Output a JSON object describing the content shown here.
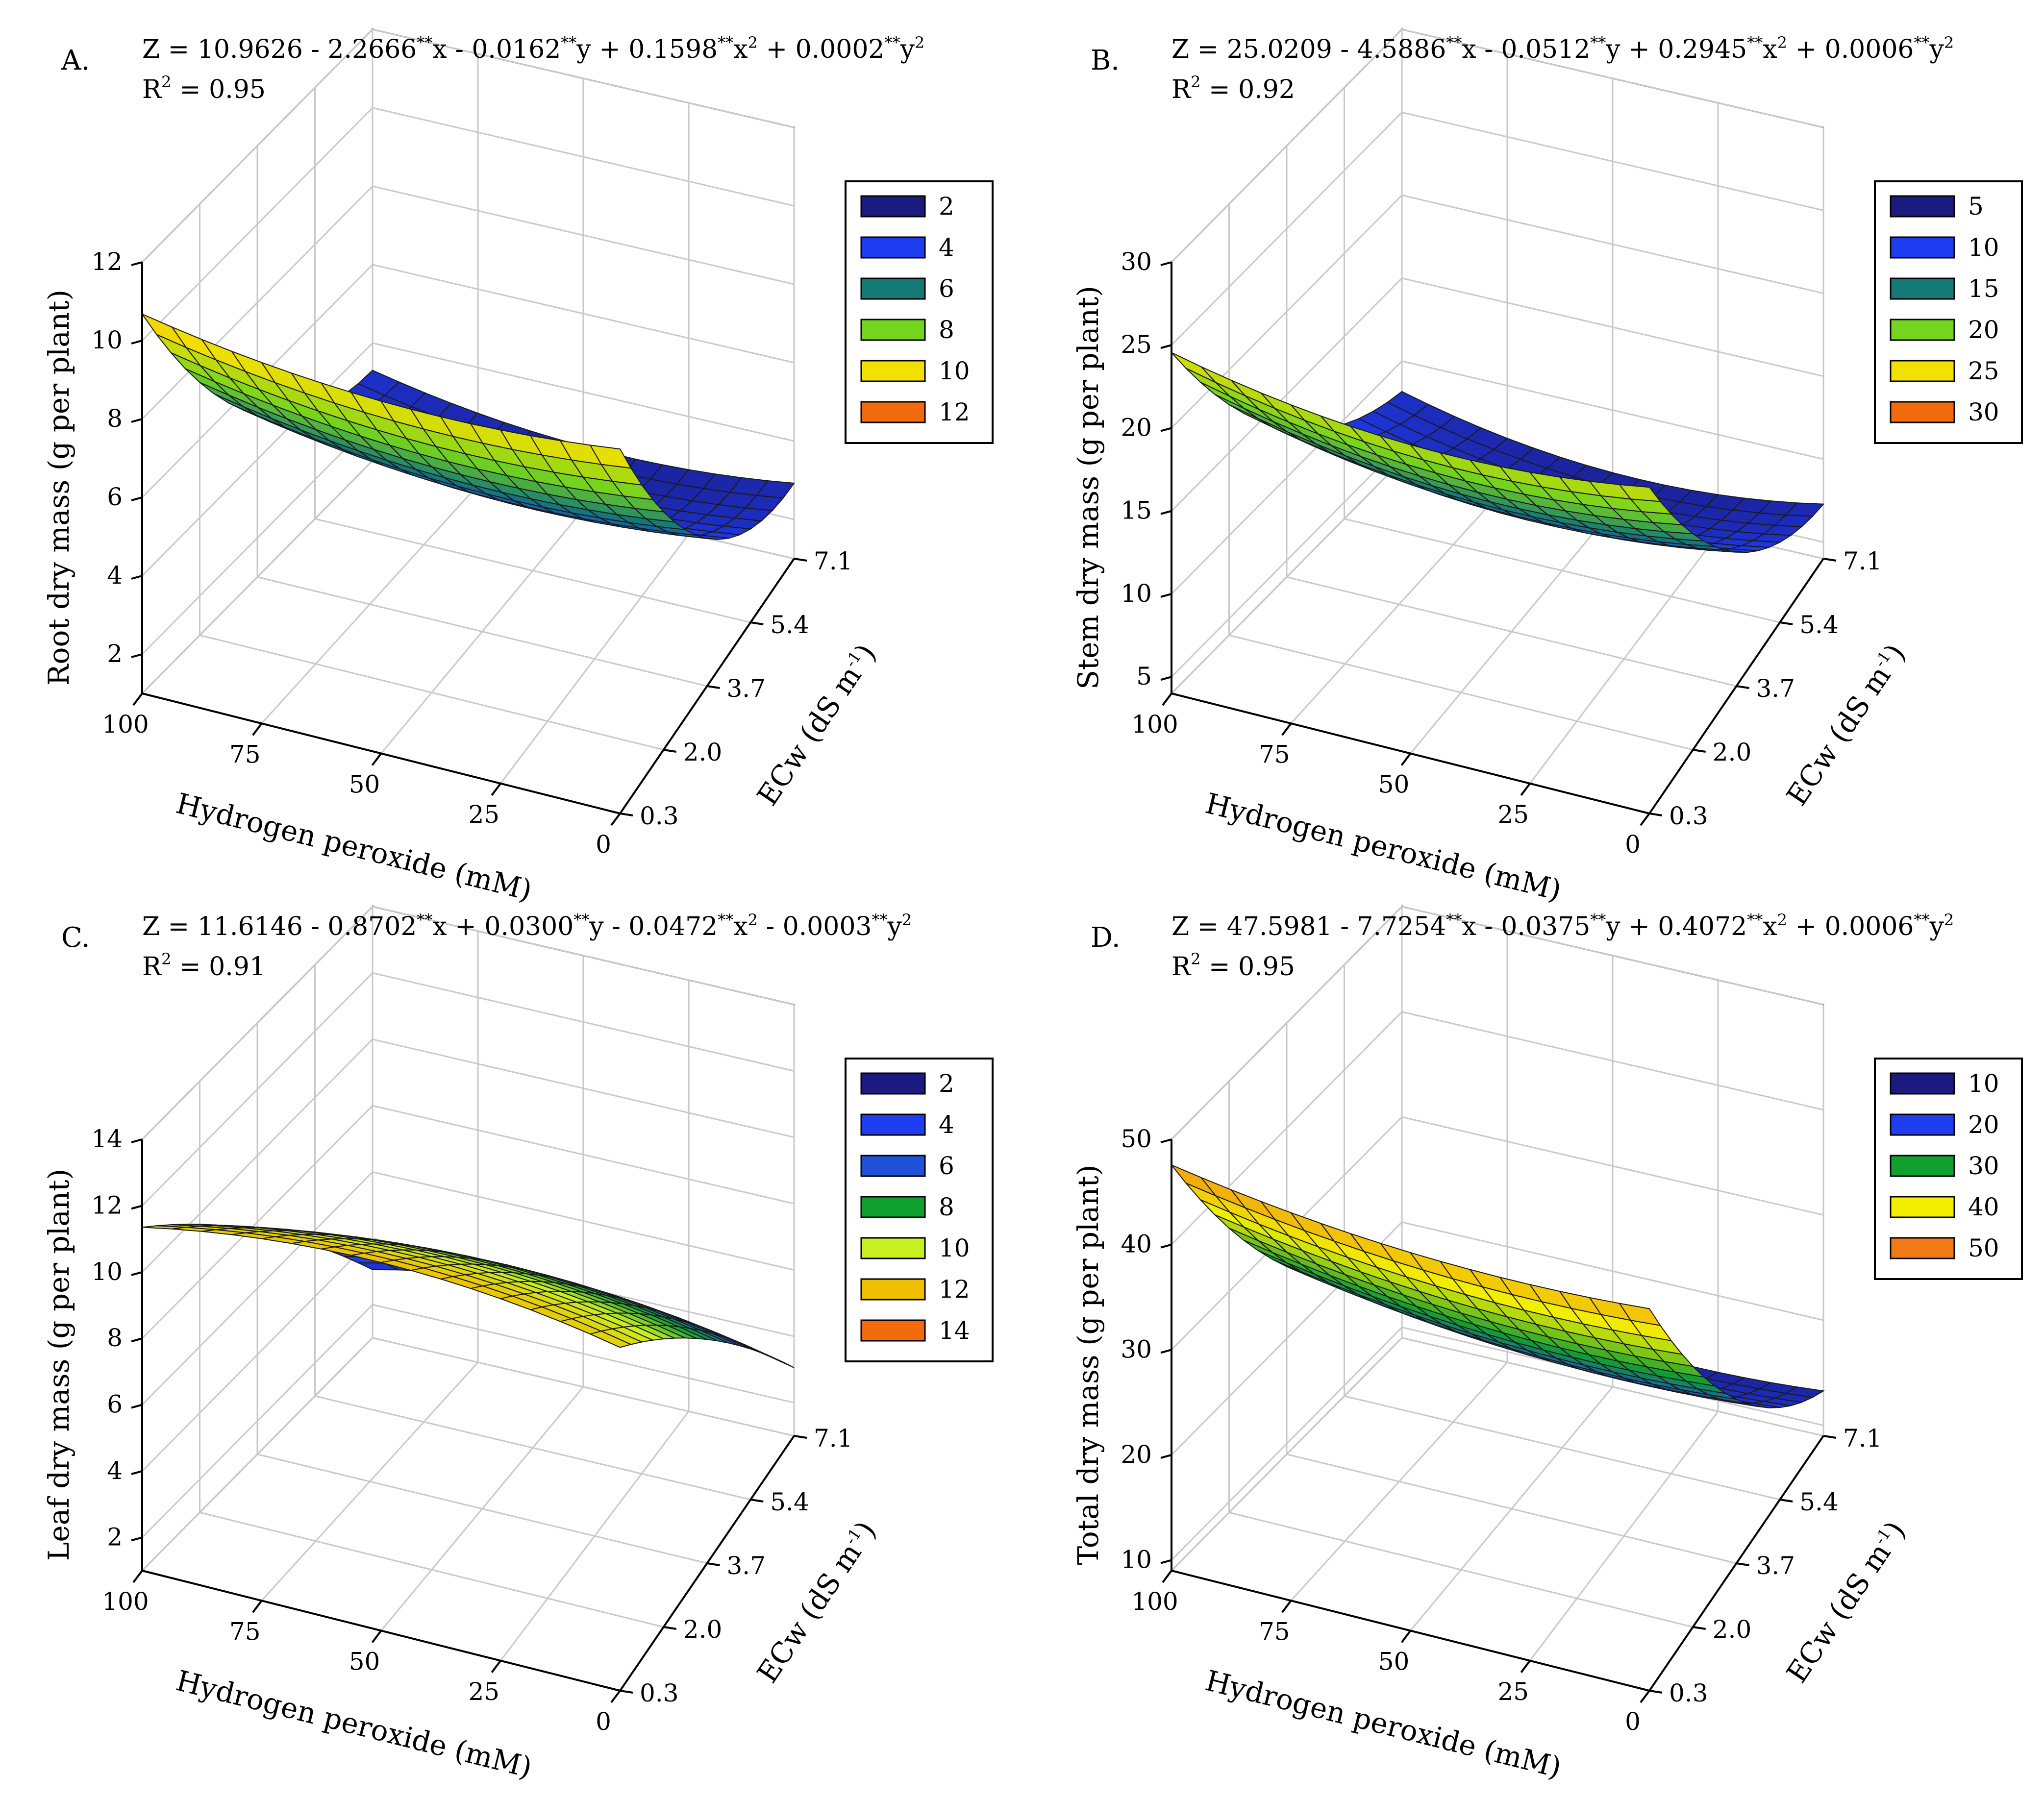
{
  "figure": {
    "panels": [
      {
        "letter": "A.",
        "equation": {
          "lead": "Z = 10.9626 - 2.2666",
          "c1": "x - 0.0162",
          "c2": "y + 0.1598",
          "c3": "x",
          "c4": " + 0.0002",
          "c5": "y",
          "stars": "**",
          "sq": "2"
        },
        "r2": {
          "prefix": "R",
          "exp": "2",
          "value": " = 0.95"
        },
        "zlabel": "Root dry mass (g per plant)",
        "xlabel": "Hydrogen peroxide (mM)",
        "ylabel": "ECw (dS m",
        "ylabel_exp": "-1",
        "ylabel_close": ")"
      },
      {
        "letter": "B.",
        "equation": {
          "lead": "Z = 25.0209 - 4.5886",
          "c1": "x - 0.0512",
          "c2": "y + 0.2945",
          "c3": "x",
          "c4": " + 0.0006",
          "c5": "y",
          "stars": "**",
          "sq": "2"
        },
        "r2": {
          "prefix": "R",
          "exp": "2",
          "value": " = 0.92"
        },
        "zlabel": "Stem dry mass (g per plant)",
        "xlabel": "Hydrogen peroxide (mM)",
        "ylabel": "ECw (dS m",
        "ylabel_exp": "-1",
        "ylabel_close": ")"
      },
      {
        "letter": "C.",
        "equation": {
          "lead": "Z = 11.6146 - 0.8702",
          "c1": "x + 0.0300",
          "c2": "y - 0.0472",
          "c3": "x",
          "c4": " - 0.0003",
          "c5": "y",
          "stars": "**",
          "sq": "2"
        },
        "r2": {
          "prefix": "R",
          "exp": "2",
          "value": " = 0.91"
        },
        "zlabel": "Leaf dry mass (g per plant)",
        "xlabel": "Hydrogen peroxide (mM)",
        "ylabel": "ECw (dS m",
        "ylabel_exp": "-1",
        "ylabel_close": ")"
      },
      {
        "letter": "D.",
        "equation": {
          "lead": "Z = 47.5981 - 7.7254",
          "c1": "x - 0.0375",
          "c2": "y + 0.4072",
          "c3": "x",
          "c4": " + 0.0006",
          "c5": "y",
          "stars": "**",
          "sq": "2"
        },
        "r2": {
          "prefix": "R",
          "exp": "2",
          "value": " = 0.95"
        },
        "zlabel": "Total dry mass (g per plant)",
        "xlabel": "Hydrogen peroxide (mM)",
        "ylabel": "ECw (dS m",
        "ylabel_exp": "-1",
        "ylabel_close": ")"
      }
    ]
  },
  "chart_data": [
    {
      "type": "surface",
      "id": "A",
      "title": "Root dry mass",
      "model": {
        "b0": 10.9626,
        "bx": -2.2666,
        "by": -0.0162,
        "bxx": 0.1598,
        "byy": 0.0002
      },
      "x_var": "ECw (dS m-1)",
      "y_var": "Hydrogen peroxide (mM)",
      "x_ticks": [
        "0.3",
        "2.0",
        "3.7",
        "5.4",
        "7.1"
      ],
      "y_ticks": [
        "0",
        "25",
        "50",
        "75",
        "100"
      ],
      "z_ticks": [
        "2",
        "4",
        "6",
        "8",
        "10",
        "12"
      ],
      "xlim": [
        0.3,
        7.1
      ],
      "ylim": [
        0,
        100
      ],
      "zlim": [
        1,
        12
      ],
      "legend": [
        "2",
        "4",
        "6",
        "8",
        "10",
        "12"
      ],
      "legend_colors": [
        "#1a1a80",
        "#1e3cf0",
        "#137a76",
        "#74d41e",
        "#f2e000",
        "#f26a0c"
      ]
    },
    {
      "type": "surface",
      "id": "B",
      "title": "Stem dry mass",
      "model": {
        "b0": 25.0209,
        "bx": -4.5886,
        "by": -0.0512,
        "bxx": 0.2945,
        "byy": 0.0006
      },
      "x_var": "ECw (dS m-1)",
      "y_var": "Hydrogen peroxide (mM)",
      "x_ticks": [
        "0.3",
        "2.0",
        "3.7",
        "5.4",
        "7.1"
      ],
      "y_ticks": [
        "0",
        "25",
        "50",
        "75",
        "100"
      ],
      "z_ticks": [
        "5",
        "10",
        "15",
        "20",
        "25",
        "30"
      ],
      "xlim": [
        0.3,
        7.1
      ],
      "ylim": [
        0,
        100
      ],
      "zlim": [
        4,
        30
      ],
      "legend": [
        "5",
        "10",
        "15",
        "20",
        "25",
        "30"
      ],
      "legend_colors": [
        "#1a1a80",
        "#1e3cf0",
        "#137a76",
        "#74d41e",
        "#f2e000",
        "#f26a0c"
      ]
    },
    {
      "type": "surface",
      "id": "C",
      "title": "Leaf dry mass",
      "model": {
        "b0": 11.6146,
        "bx": -0.8702,
        "by": 0.03,
        "bxx": -0.0472,
        "byy": -0.0003
      },
      "x_var": "ECw (dS m-1)",
      "y_var": "Hydrogen peroxide (mM)",
      "x_ticks": [
        "0.3",
        "2.0",
        "3.7",
        "5.4",
        "7.1"
      ],
      "y_ticks": [
        "0",
        "25",
        "50",
        "75",
        "100"
      ],
      "z_ticks": [
        "2",
        "4",
        "6",
        "8",
        "10",
        "12",
        "14"
      ],
      "xlim": [
        0.3,
        7.1
      ],
      "ylim": [
        0,
        100
      ],
      "zlim": [
        1,
        14
      ],
      "legend": [
        "2",
        "4",
        "6",
        "8",
        "10",
        "12",
        "14"
      ],
      "legend_colors": [
        "#1a1a80",
        "#1e3cf0",
        "#1e50d8",
        "#10a030",
        "#c8f020",
        "#f0c000",
        "#f26a0c"
      ]
    },
    {
      "type": "surface",
      "id": "D",
      "title": "Total dry mass",
      "model": {
        "b0": 47.5981,
        "bx": -7.7254,
        "by": -0.0375,
        "bxx": 0.4072,
        "byy": 0.0006
      },
      "x_var": "ECw (dS m-1)",
      "y_var": "Hydrogen peroxide (mM)",
      "x_ticks": [
        "0.3",
        "2.0",
        "3.7",
        "5.4",
        "7.1"
      ],
      "y_ticks": [
        "0",
        "25",
        "50",
        "75",
        "100"
      ],
      "z_ticks": [
        "10",
        "20",
        "30",
        "40",
        "50"
      ],
      "xlim": [
        0.3,
        7.1
      ],
      "ylim": [
        0,
        100
      ],
      "zlim": [
        9,
        50
      ],
      "legend": [
        "10",
        "20",
        "30",
        "40",
        "50"
      ],
      "legend_colors": [
        "#1a1a80",
        "#1e3cf0",
        "#10a030",
        "#f2f000",
        "#f27a14"
      ]
    }
  ]
}
